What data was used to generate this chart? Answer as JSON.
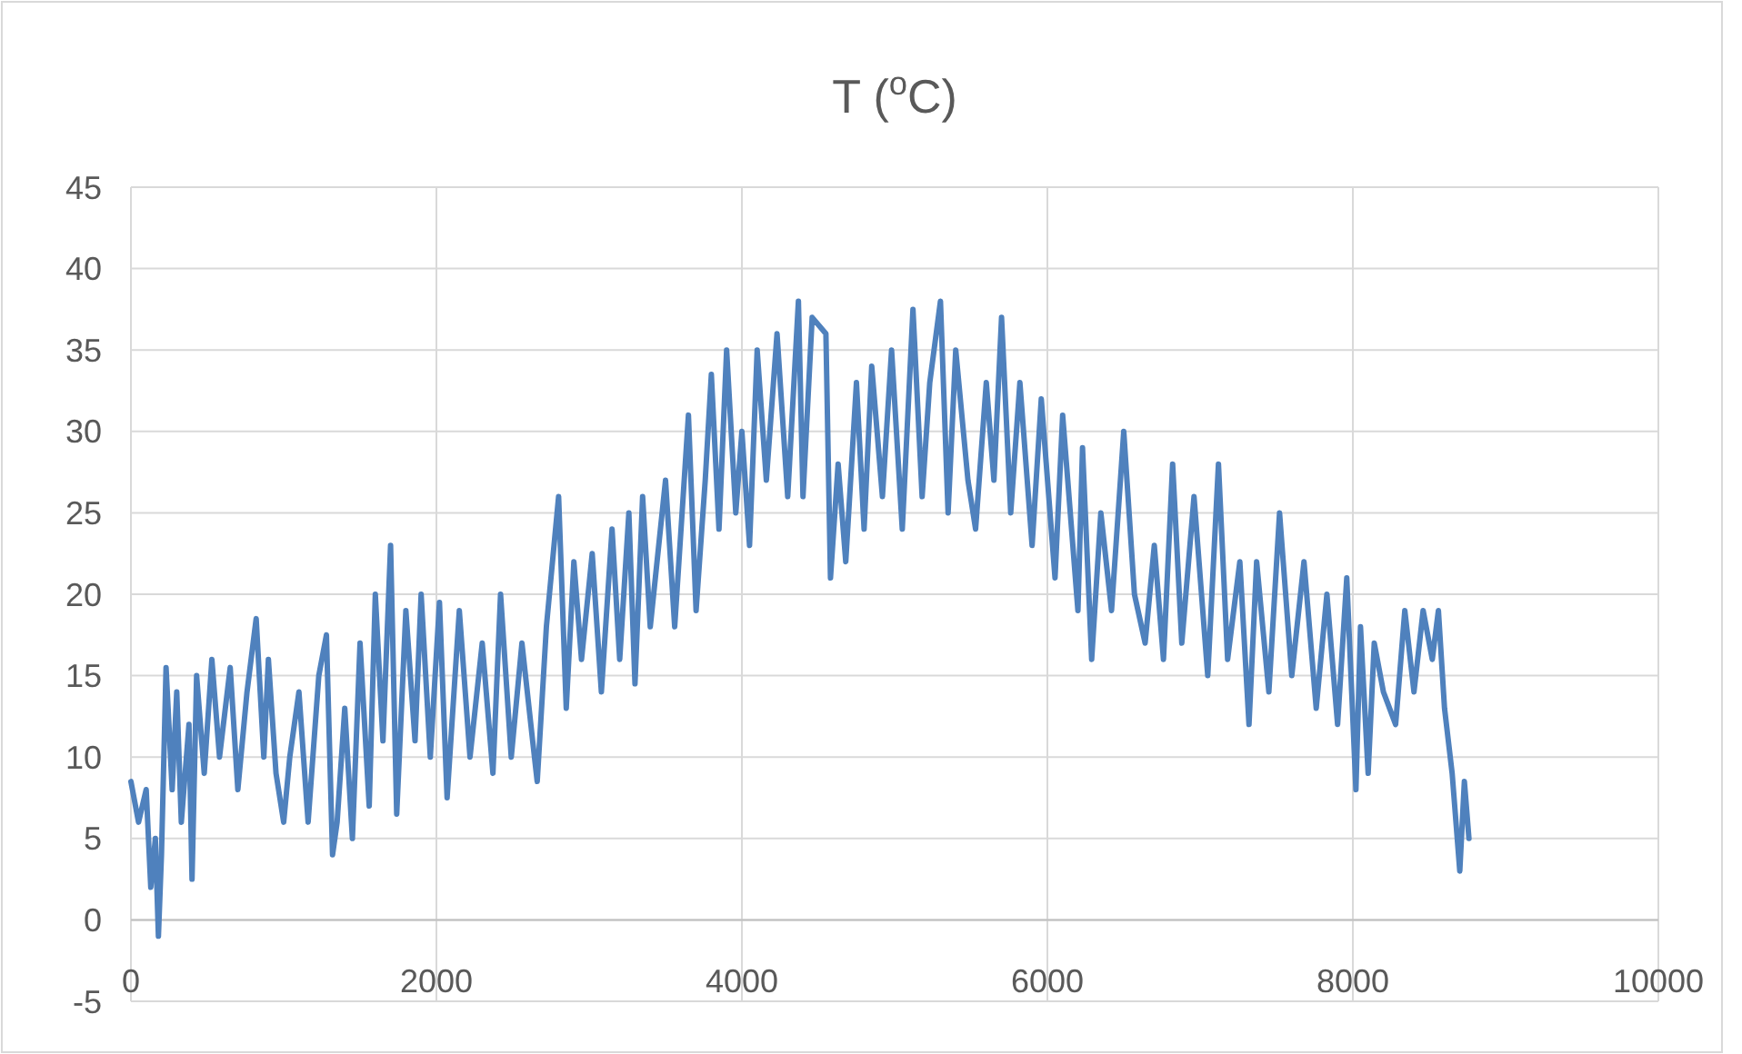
{
  "chart_data": {
    "type": "line",
    "title": "T ($^{o}$C)",
    "x": [
      0,
      50,
      100,
      130,
      160,
      180,
      200,
      230,
      270,
      300,
      330,
      380,
      400,
      430,
      480,
      530,
      580,
      650,
      700,
      760,
      820,
      870,
      900,
      950,
      1000,
      1040,
      1100,
      1160,
      1230,
      1280,
      1320,
      1350,
      1400,
      1450,
      1500,
      1560,
      1600,
      1650,
      1700,
      1740,
      1800,
      1860,
      1900,
      1960,
      2020,
      2070,
      2150,
      2220,
      2300,
      2370,
      2420,
      2490,
      2560,
      2630,
      2660,
      2720,
      2800,
      2850,
      2900,
      2950,
      3020,
      3080,
      3150,
      3200,
      3260,
      3300,
      3350,
      3400,
      3500,
      3560,
      3650,
      3700,
      3760,
      3800,
      3850,
      3900,
      3960,
      4000,
      4050,
      4100,
      4160,
      4230,
      4300,
      4370,
      4400,
      4460,
      4550,
      4580,
      4630,
      4680,
      4750,
      4800,
      4850,
      4920,
      4980,
      5050,
      5120,
      5180,
      5230,
      5300,
      5350,
      5400,
      5480,
      5530,
      5600,
      5650,
      5700,
      5760,
      5820,
      5900,
      5960,
      6050,
      6100,
      6200,
      6230,
      6290,
      6350,
      6420,
      6500,
      6570,
      6640,
      6700,
      6760,
      6820,
      6880,
      6960,
      7050,
      7120,
      7180,
      7260,
      7320,
      7370,
      7450,
      7520,
      7600,
      7680,
      7760,
      7830,
      7900,
      7960,
      8020,
      8050,
      8100,
      8140,
      8200,
      8280,
      8340,
      8400,
      8460,
      8520,
      8560,
      8600,
      8650,
      8700,
      8730,
      8760
    ],
    "series": [
      {
        "color": "#4f81bd",
        "values": [
          8.5,
          6,
          8,
          2,
          5,
          -1,
          4,
          15.5,
          8,
          14,
          6,
          12,
          2.5,
          15,
          9,
          16,
          10,
          15.5,
          8,
          14,
          18.5,
          10,
          16,
          9,
          6,
          10,
          14,
          6,
          15,
          17.5,
          4,
          6,
          13,
          5,
          17,
          7,
          20,
          11,
          23,
          6.5,
          19,
          11,
          20,
          10,
          19.5,
          7.5,
          19,
          10,
          17,
          9,
          20,
          10,
          17,
          11,
          8.5,
          18,
          26,
          13,
          22,
          16,
          22.5,
          14,
          24,
          16,
          25,
          14.5,
          26,
          18,
          27,
          18,
          31,
          19,
          27,
          33.5,
          24,
          35,
          25,
          30,
          23,
          35,
          27,
          36,
          26,
          38,
          26,
          37,
          36,
          21,
          28,
          22,
          33,
          24,
          34,
          26,
          35,
          24,
          37.5,
          26,
          33,
          38,
          25,
          35,
          27,
          24,
          33,
          27,
          37,
          25,
          33,
          23,
          32,
          21,
          31,
          19,
          29,
          16,
          25,
          19,
          30,
          20,
          17,
          23,
          16,
          28,
          17,
          26,
          15,
          28,
          16,
          22,
          12,
          22,
          14,
          25,
          15,
          22,
          13,
          20,
          12,
          21,
          8,
          18,
          9,
          17,
          14,
          12,
          19,
          14,
          19,
          16,
          19,
          13,
          9,
          3,
          8.5,
          5
        ]
      }
    ],
    "xlim": [
      0,
      10000
    ],
    "xticks": [
      0,
      2000,
      4000,
      6000,
      8000,
      10000
    ],
    "ylim": [
      -5,
      45
    ],
    "yticks": [
      -5,
      0,
      5,
      10,
      15,
      20,
      25,
      30,
      35,
      40,
      45
    ],
    "grid": true,
    "marker": "none",
    "line_style": "solid"
  }
}
